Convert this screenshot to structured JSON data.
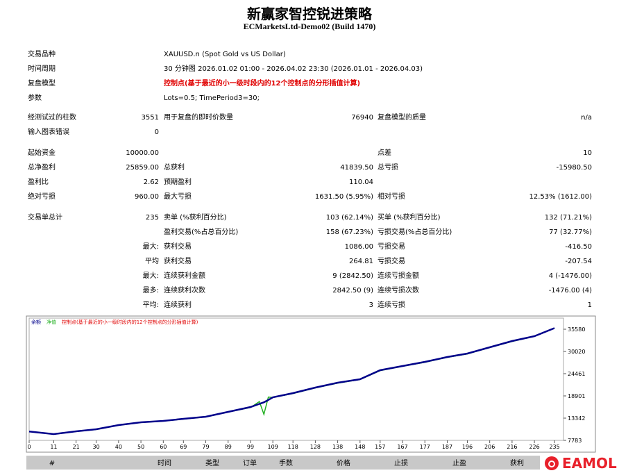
{
  "header": {
    "title": "新赢家智控锐进策略",
    "subtitle": "ECMarketsLtd-Demo02 (Build 1470)"
  },
  "info": [
    [
      "交易品种",
      "XAUUSD.n (Spot Gold vs US Dollar)"
    ],
    [
      "时间周期",
      "30 分钟图 2026.01.02 01:00 - 2026.04.02 23:30 (2026.01.01 - 2026.04.03)"
    ],
    [
      "复盘模型",
      "控制点(基于最近的小一级时段内的12个控制点的分形插值计算)"
    ],
    [
      "参数",
      "Lots=0.5; TimePeriod3=30;"
    ]
  ],
  "stats": [
    [
      "经测试过的柱数",
      "3551",
      "用于复盘的即时价数量",
      "76940",
      "复盘模型的质量",
      "n/a"
    ],
    [
      "输入图表错误",
      "0",
      null,
      null,
      null,
      null
    ],
    [
      "起始资金",
      "10000.00",
      null,
      null,
      "点差",
      "10"
    ],
    [
      "总净盈利",
      "25859.00",
      "总获利",
      "41839.50",
      "总亏损",
      "-15980.50"
    ],
    [
      "盈利比",
      "2.62",
      "预期盈利",
      "110.04",
      null,
      null
    ],
    [
      "绝对亏损",
      "960.00",
      "最大亏损",
      "1631.50 (5.95%)",
      "相对亏损",
      "12.53% (1612.00)"
    ],
    [
      "交易单总计",
      "235",
      "卖单 (%获利百分比)",
      "103 (62.14%)",
      "买单 (%获利百分比)",
      "132 (71.21%)"
    ],
    [
      null,
      null,
      "盈利交易(%占总百分比)",
      "158 (67.23%)",
      "亏损交易(%占总百分比)",
      "77 (32.77%)"
    ],
    [
      null,
      "最大:",
      "获利交易",
      "1086.00",
      "亏损交易",
      "-416.50"
    ],
    [
      null,
      "平均",
      "获利交易",
      "264.81",
      "亏损交易",
      "-207.54"
    ],
    [
      null,
      "最大:",
      "连续获利金额",
      "9 (2842.50)",
      "连续亏损金额",
      "4 (-1476.00)"
    ],
    [
      null,
      "最多:",
      "连续获利次数",
      "2842.50 (9)",
      "连续亏损次数",
      "-1476.00 (4)"
    ],
    [
      null,
      "平均:",
      "连续获利",
      "3",
      "连续亏损",
      "1"
    ]
  ],
  "chart_data": {
    "type": "line",
    "model_note": "控制点(基于最近的小一级时段内的12个控制点的分形插值计算)",
    "x": [
      0,
      11,
      21,
      30,
      40,
      50,
      60,
      69,
      79,
      89,
      99,
      103,
      105,
      107,
      109,
      118,
      128,
      138,
      148,
      157,
      167,
      177,
      187,
      196,
      206,
      216,
      226,
      235
    ],
    "series": [
      {
        "name": "余额",
        "color": "#00008b",
        "values": [
          10000,
          9350,
          10040,
          10560,
          11600,
          12300,
          12650,
          13170,
          13690,
          14900,
          16120,
          16900,
          17300,
          17900,
          18550,
          19600,
          20990,
          22200,
          23070,
          25330,
          26370,
          27410,
          28630,
          29500,
          31060,
          32630,
          33840,
          35859
        ]
      },
      {
        "name": "净值",
        "color": "#22b022",
        "values": [
          10000,
          9300,
          10000,
          10500,
          11550,
          12250,
          12600,
          13100,
          13650,
          14850,
          16000,
          17500,
          14300,
          18600,
          18500,
          19500,
          20900,
          22100,
          23000,
          25200,
          26300,
          27300,
          28550,
          29400,
          31000,
          32500,
          33800,
          35859
        ]
      }
    ],
    "note_color": "#e00000",
    "xlim": [
      0,
      239
    ],
    "xticks": [
      0,
      11,
      21,
      30,
      40,
      50,
      60,
      69,
      79,
      89,
      99,
      109,
      118,
      128,
      138,
      148,
      157,
      167,
      177,
      187,
      196,
      206,
      216,
      226,
      235
    ],
    "ylim": [
      7783,
      38360
    ],
    "yticks": [
      7783,
      13342,
      18901,
      24461,
      30020,
      35580
    ]
  },
  "trade_table": {
    "columns": [
      "#",
      "时间",
      "类型",
      "订单",
      "手数",
      "价格",
      "止损",
      "止盈",
      "获利"
    ]
  },
  "watermark": "EAMOL"
}
